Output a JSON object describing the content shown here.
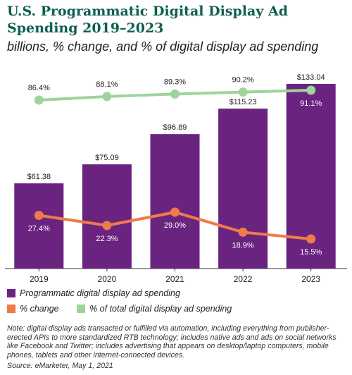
{
  "chart_data": {
    "type": "bar",
    "title": "U.S. Programmatic Digital Display Ad Spending 2019–2023",
    "subtitle": "billions, % change, and % of digital display ad spending",
    "categories": [
      "2019",
      "2020",
      "2021",
      "2022",
      "2023"
    ],
    "series": [
      {
        "name": "Programmatic digital display ad spending",
        "type": "bar",
        "color": "#6a2480",
        "values": [
          61.38,
          75.09,
          96.89,
          115.23,
          133.04
        ],
        "labels": [
          "$61.38",
          "$75.09",
          "$96.89",
          "$115.23",
          "$133.04"
        ]
      },
      {
        "name": "% change",
        "type": "line",
        "color": "#f07a4a",
        "values": [
          27.4,
          22.3,
          29.0,
          18.9,
          15.5
        ],
        "labels": [
          "27.4%",
          "22.3%",
          "29.0%",
          "18.9%",
          "15.5%"
        ]
      },
      {
        "name": "% of total digital display ad spending",
        "type": "line",
        "color": "#9ed49a",
        "values": [
          86.4,
          88.1,
          89.3,
          90.2,
          91.1
        ],
        "labels": [
          "86.4%",
          "88.1%",
          "89.3%",
          "90.2%",
          "91.1%"
        ]
      }
    ],
    "grid": false,
    "legend_position": "bottom"
  },
  "note": "Note: digital display ads transacted or fulfilled via automation, including everything from publisher-erected APIs to more standardized RTB technology; includes native ads and ads on social networks like Facebook and Twitter; includes advertising that appears on desktop/laptop computers, mobile phones, tablets and other internet-connected devices.",
  "source": "Source: eMarketer, May 1, 2021"
}
